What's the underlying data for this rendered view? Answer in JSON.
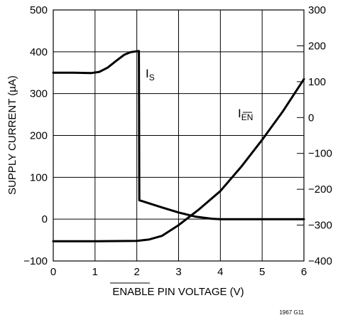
{
  "chart_data": {
    "type": "line",
    "xlabel": "ENABLE PIN VOLTAGE (V)",
    "xlabel_overline_part": "ENABLE",
    "xlabel_rest": " PIN VOLTAGE (V)",
    "ylabel": "SUPPLY CURRENT (µA)",
    "xlim": [
      0,
      6
    ],
    "ylim": [
      -100,
      500
    ],
    "y2lim": [
      -400,
      300
    ],
    "grid": true,
    "x_ticks": [
      "0",
      "1",
      "2",
      "3",
      "4",
      "5",
      "6"
    ],
    "y_ticks": [
      "−100",
      "0",
      "100",
      "200",
      "300",
      "400",
      "500"
    ],
    "y2_ticks": [
      "−400",
      "−300",
      "−200",
      "−100",
      "0",
      "100",
      "200",
      "300"
    ],
    "series": [
      {
        "name": "IS",
        "label_main": "I",
        "label_sub": "S",
        "axis": "left",
        "x": [
          0,
          0.5,
          0.9,
          1.1,
          1.3,
          1.5,
          1.7,
          1.85,
          2.05,
          2.06,
          2.1,
          2.6,
          3.0,
          3.4,
          3.8,
          4.0,
          6.0
        ],
        "y": [
          350,
          350,
          349,
          352,
          362,
          378,
          393,
          399,
          402,
          45,
          44,
          28,
          16,
          6,
          1,
          0,
          0
        ]
      },
      {
        "name": "IEN",
        "label_main": "I",
        "label_sub": "EN",
        "axis": "right",
        "x": [
          0,
          1.0,
          2.0,
          2.3,
          2.6,
          3.0,
          3.5,
          4.0,
          4.5,
          5.0,
          5.5,
          6.0
        ],
        "y": [
          -345,
          -345,
          -344,
          -340,
          -330,
          -300,
          -255,
          -205,
          -137,
          -62,
          18,
          107
        ]
      }
    ]
  },
  "footnote": "1967 G11"
}
